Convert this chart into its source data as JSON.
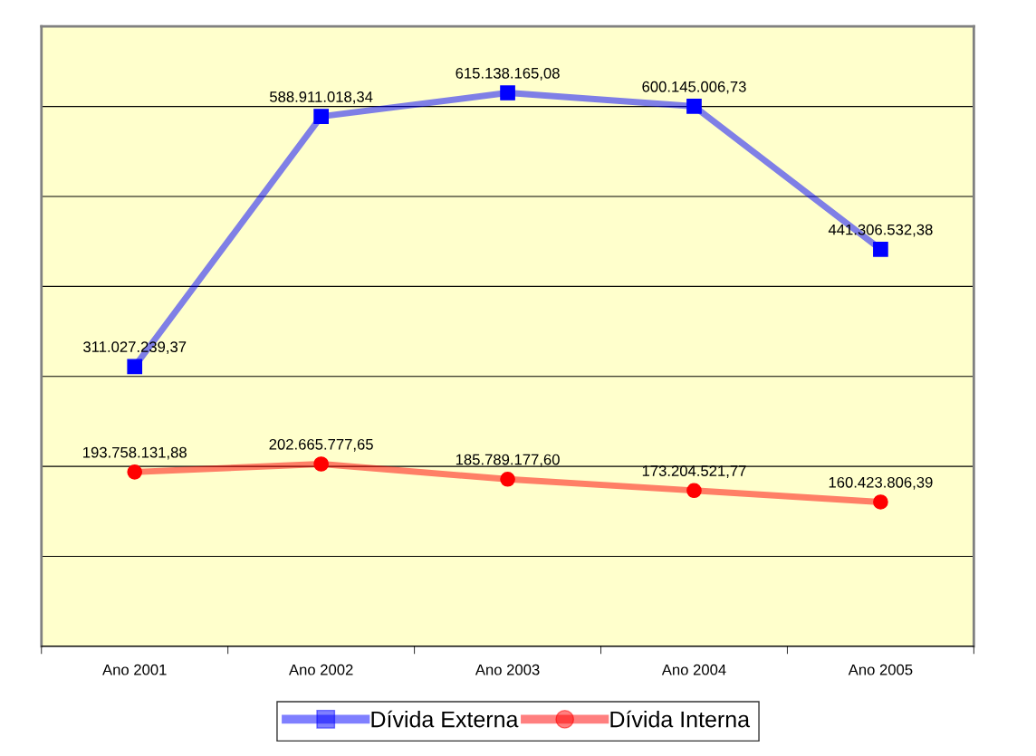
{
  "chart_data": {
    "type": "line",
    "categories": [
      "Ano 2001",
      "Ano 2002",
      "Ano 2003",
      "Ano 2004",
      "Ano 2005"
    ],
    "series": [
      {
        "name": "Dívida Externa",
        "color": "#0000ff",
        "marker": "square",
        "values": [
          311027239.37,
          588911018.34,
          615138165.08,
          600145006.73,
          441306532.38
        ],
        "value_labels": [
          "311.027.239,37",
          "588.911.018,34",
          "615.138.165,08",
          "600.145.006,73",
          "441.306.532,38"
        ]
      },
      {
        "name": "Dívida Interna",
        "color": "#ff0000",
        "marker": "circle",
        "values": [
          193758131.88,
          202665777.65,
          185789177.6,
          173204521.77,
          160423806.39
        ],
        "value_labels": [
          "193.758.131,88",
          "202.665.777,65",
          "185.789.177,60",
          "173.204.521,77",
          "160.423.806,39"
        ]
      }
    ],
    "tick_labels": "x",
    "grid": "y",
    "legend": "bottom"
  }
}
